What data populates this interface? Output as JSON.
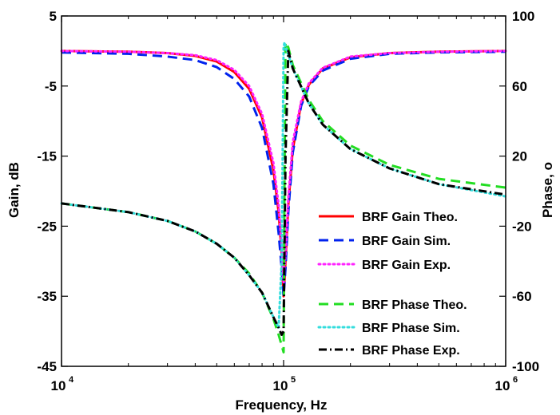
{
  "chart_data": {
    "type": "line",
    "xlabel": "Frequency, Hz",
    "ylabel_left": "Gain, dB",
    "ylabel_right": "Phase, o",
    "x_scale": "log",
    "xlim": [
      10000,
      1000000
    ],
    "ylim_left": [
      -45,
      5
    ],
    "ylim_right": [
      -100,
      100
    ],
    "x_ticks": [
      {
        "value": 10000,
        "base": "10",
        "exp": "4"
      },
      {
        "value": 100000,
        "base": "10",
        "exp": "5"
      },
      {
        "value": 1000000,
        "base": "10",
        "exp": "6"
      }
    ],
    "y_ticks_left": [
      {
        "value": 5,
        "label": "5"
      },
      {
        "value": -5,
        "label": "-5"
      },
      {
        "value": -15,
        "label": "-15"
      },
      {
        "value": -25,
        "label": "-25"
      },
      {
        "value": -35,
        "label": "-35"
      },
      {
        "value": -45,
        "label": "-45"
      }
    ],
    "y_ticks_right": [
      {
        "value": 100,
        "label": "100"
      },
      {
        "value": 60,
        "label": "60"
      },
      {
        "value": 20,
        "label": "20"
      },
      {
        "value": -20,
        "label": "-20"
      },
      {
        "value": -60,
        "label": "-60"
      },
      {
        "value": -100,
        "label": "-100"
      }
    ],
    "grid": false,
    "legend_position": "lower-right",
    "series": [
      {
        "name": "BRF Gain Theo.",
        "axis": "left",
        "color": "#ff0000",
        "dash": "solid",
        "x": [
          10000,
          20000,
          30000,
          40000,
          50000,
          60000,
          70000,
          80000,
          90000,
          95000,
          98000,
          100000,
          102000,
          105000,
          110000,
          120000,
          130000,
          150000,
          200000,
          300000,
          500000,
          1000000
        ],
        "y": [
          0,
          -0.1,
          -0.3,
          -0.7,
          -1.5,
          -3,
          -5.4,
          -9.5,
          -17,
          -23,
          -29,
          -35,
          -30,
          -22,
          -14,
          -7.5,
          -4.8,
          -2.5,
          -0.9,
          -0.3,
          -0.1,
          0
        ]
      },
      {
        "name": "BRF Gain Sim.",
        "axis": "left",
        "color": "#0022ee",
        "dash": "dashed",
        "x": [
          10000,
          20000,
          30000,
          40000,
          50000,
          60000,
          70000,
          80000,
          90000,
          95000,
          98000,
          100000,
          102000,
          105000,
          110000,
          120000,
          130000,
          150000,
          200000,
          300000,
          500000,
          1000000
        ],
        "y": [
          -0.2,
          -0.4,
          -0.8,
          -1.3,
          -2.3,
          -4,
          -6.5,
          -11,
          -19,
          -26,
          -31,
          -35,
          -31,
          -23,
          -14.5,
          -7.8,
          -5,
          -2.8,
          -1.1,
          -0.4,
          -0.2,
          -0.1
        ]
      },
      {
        "name": "BRF Gain Exp.",
        "axis": "left",
        "color": "#ff22ff",
        "dash": "dotted",
        "x": [
          10000,
          20000,
          30000,
          40000,
          50000,
          60000,
          70000,
          80000,
          90000,
          95000,
          98000,
          100000,
          102000,
          105000,
          110000,
          120000,
          130000,
          150000,
          200000,
          300000,
          500000,
          1000000
        ],
        "y": [
          0,
          -0.1,
          -0.3,
          -0.6,
          -1.3,
          -2.7,
          -5,
          -9,
          -16,
          -22,
          -28,
          -33,
          -29,
          -21,
          -13,
          -7.2,
          -4.6,
          -2.4,
          -0.8,
          -0.3,
          -0.1,
          0
        ]
      },
      {
        "name": "BRF Phase Theo.",
        "axis": "right",
        "color": "#22dd22",
        "dash": "dashed",
        "x": [
          10000,
          20000,
          30000,
          40000,
          50000,
          60000,
          70000,
          80000,
          90000,
          95000,
          98000,
          100000,
          101000,
          102000,
          105000,
          110000,
          130000,
          150000,
          200000,
          300000,
          500000,
          1000000
        ],
        "y": [
          -7,
          -12,
          -17,
          -23,
          -30,
          -38,
          -47,
          -58,
          -73,
          -82,
          -88,
          -92,
          10,
          85,
          82,
          72,
          52,
          40,
          26,
          15,
          7,
          2
        ]
      },
      {
        "name": "BRF Phase Sim.",
        "axis": "right",
        "color": "#33dddd",
        "dash": "dotted",
        "x": [
          10000,
          20000,
          30000,
          40000,
          50000,
          60000,
          70000,
          80000,
          90000,
          95000,
          98000,
          100000,
          101000,
          102000,
          105000,
          110000,
          130000,
          150000,
          200000,
          300000,
          500000,
          1000000
        ],
        "y": [
          -7,
          -12,
          -17,
          -23,
          -30,
          -38,
          -48,
          -58,
          -72,
          -78,
          -40,
          82,
          85,
          82,
          78,
          70,
          50,
          38,
          24,
          13,
          4,
          -3
        ]
      },
      {
        "name": "BRF Phase Exp.",
        "axis": "right",
        "color": "#000000",
        "dash": "dashdot",
        "x": [
          10000,
          20000,
          30000,
          40000,
          50000,
          60000,
          70000,
          80000,
          90000,
          95000,
          98000,
          100000,
          102000,
          105000,
          110000,
          130000,
          150000,
          200000,
          300000,
          500000,
          1000000
        ],
        "y": [
          -7,
          -12,
          -17,
          -23,
          -30,
          -38,
          -48,
          -58,
          -72,
          -78,
          -82,
          -80,
          20,
          80,
          70,
          50,
          38,
          24,
          13,
          4,
          -2
        ]
      }
    ]
  }
}
